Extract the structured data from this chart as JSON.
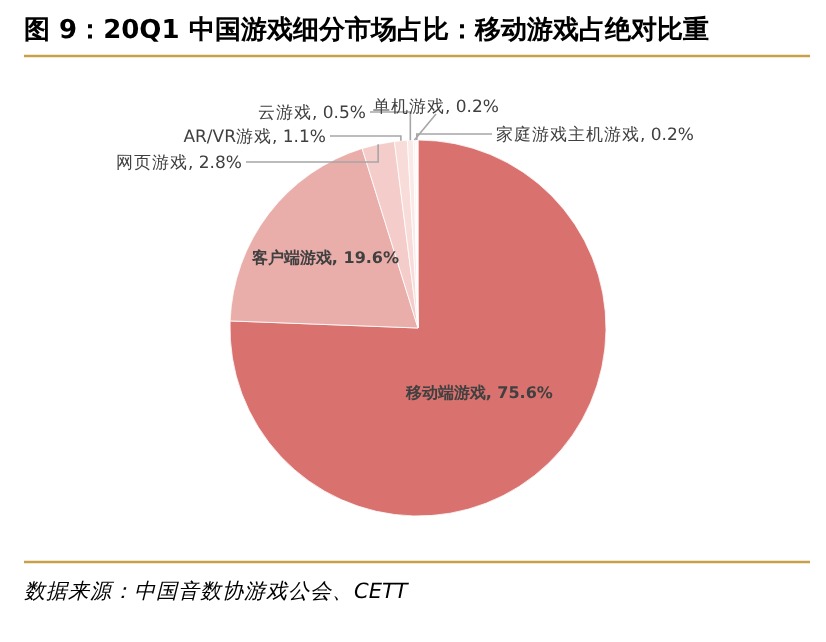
{
  "chart_data": {
    "type": "pie",
    "title": "图 9：20Q1 中国游戏细分市场占比：移动游戏占绝对比重",
    "categories": [
      "移动端游戏",
      "客户端游戏",
      "网页游戏",
      "AR/VR游戏",
      "云游戏",
      "单机游戏",
      "家庭游戏主机游戏"
    ],
    "values": [
      75.6,
      19.6,
      2.8,
      1.1,
      0.5,
      0.2,
      0.2
    ],
    "value_labels": [
      "75.6%",
      "19.6%",
      "2.8%",
      "1.1%",
      "0.5%",
      "0.2%",
      "0.2%"
    ],
    "colors": [
      "#d9726e",
      "#eaaeaa",
      "#f4cdcb",
      "#f8dcda",
      "#fbe9e8",
      "#fdf2f1",
      "#fff8f8"
    ],
    "annotations": [
      "数据来源：中国音数协游戏公会、CETT"
    ]
  }
}
